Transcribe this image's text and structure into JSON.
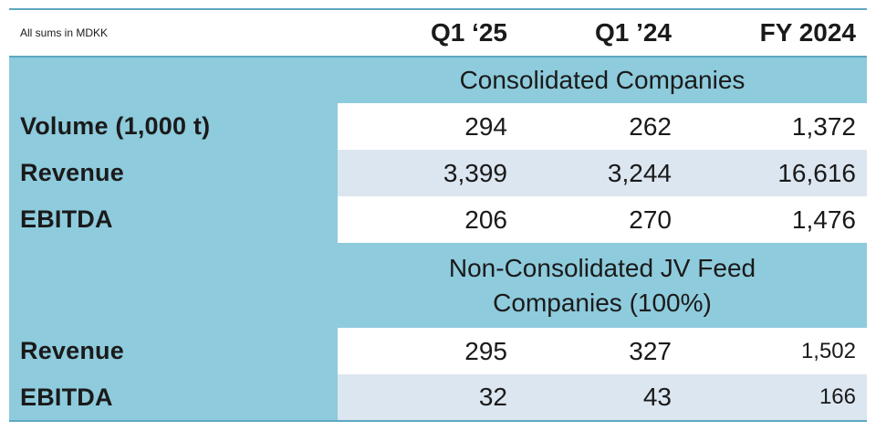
{
  "header": {
    "note": "All sums in MDKK",
    "columns": [
      "Q1 ‘25",
      "Q1 ’24",
      "FY 2024"
    ]
  },
  "sections": [
    {
      "title": "Consolidated Companies",
      "rows": [
        {
          "label": "Volume (1,000 t)",
          "values": [
            "294",
            "262",
            "1,372"
          ]
        },
        {
          "label": "Revenue",
          "values": [
            "3,399",
            "3,244",
            "16,616"
          ]
        },
        {
          "label": "EBITDA",
          "values": [
            "206",
            "270",
            "1,476"
          ]
        }
      ]
    },
    {
      "title_line1": "Non-Consolidated JV Feed",
      "title_line2": "Companies (100%)",
      "rows": [
        {
          "label": "Revenue",
          "values": [
            "295",
            "327",
            "1,502"
          ]
        },
        {
          "label": "EBITDA",
          "values": [
            "32",
            "43",
            "166"
          ]
        }
      ]
    }
  ]
}
